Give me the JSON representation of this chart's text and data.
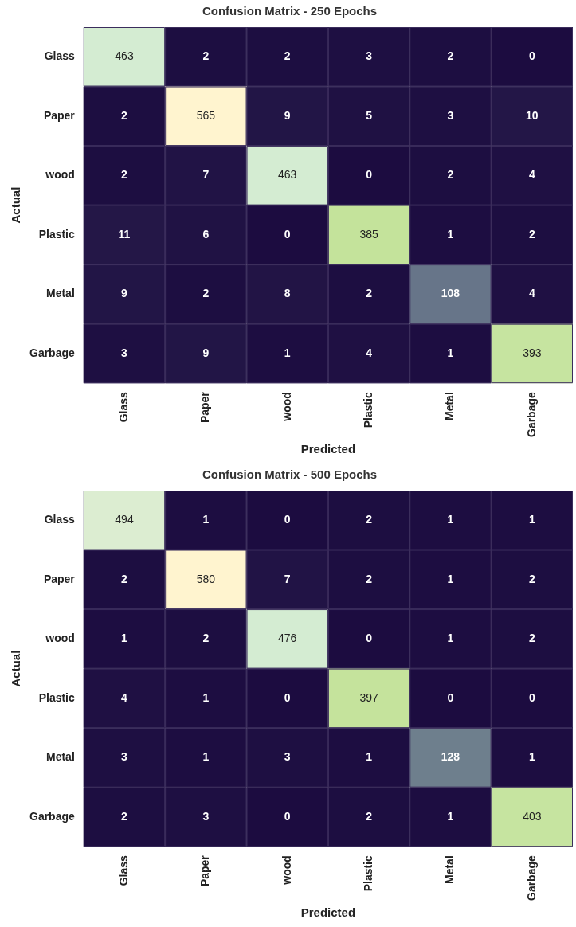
{
  "chart_data": [
    {
      "type": "heatmap",
      "title": "Confusion Matrix - 250 Epochs",
      "xlabel": "Predicted",
      "ylabel": "Actual",
      "data_labels": true,
      "categories": [
        "Glass",
        "Paper",
        "wood",
        "Plastic",
        "Metal",
        "Garbage"
      ],
      "y_categories": [
        "Glass",
        "Paper",
        "wood",
        "Plastic",
        "Metal",
        "Garbage"
      ],
      "cells": [
        [
          463,
          2,
          2,
          3,
          2,
          0
        ],
        [
          2,
          565,
          9,
          5,
          3,
          10
        ],
        [
          2,
          7,
          463,
          0,
          2,
          4
        ],
        [
          11,
          6,
          0,
          385,
          1,
          2
        ],
        [
          9,
          2,
          8,
          2,
          108,
          4
        ],
        [
          3,
          9,
          1,
          4,
          1,
          393
        ]
      ]
    },
    {
      "type": "heatmap",
      "title": "Confusion Matrix - 500 Epochs",
      "xlabel": "Predicted",
      "ylabel": "Actual",
      "data_labels": true,
      "categories": [
        "Glass",
        "Paper",
        "wood",
        "Plastic",
        "Metal",
        "Garbage"
      ],
      "y_categories": [
        "Glass",
        "Paper",
        "wood",
        "Plastic",
        "Metal",
        "Garbage"
      ],
      "cells": [
        [
          494,
          1,
          0,
          2,
          1,
          1
        ],
        [
          2,
          580,
          7,
          2,
          1,
          2
        ],
        [
          1,
          2,
          476,
          0,
          1,
          2
        ],
        [
          4,
          1,
          0,
          397,
          0,
          0
        ],
        [
          3,
          1,
          3,
          1,
          128,
          1
        ],
        [
          2,
          3,
          0,
          2,
          1,
          403
        ]
      ]
    }
  ]
}
